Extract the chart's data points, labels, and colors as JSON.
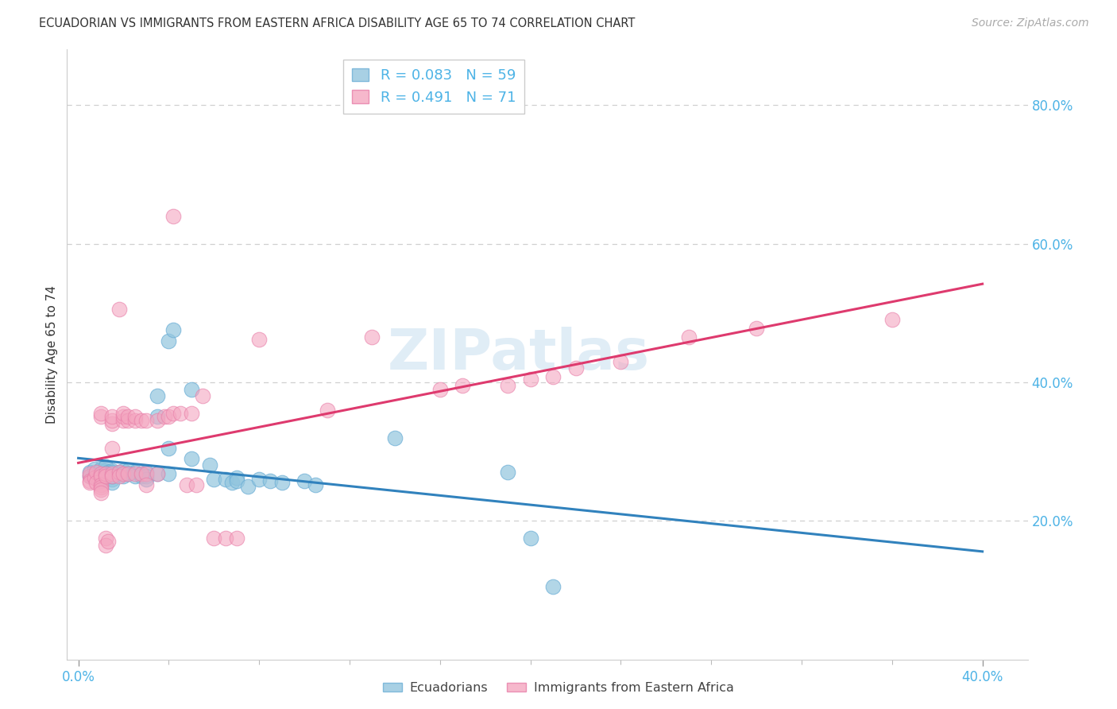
{
  "title": "ECUADORIAN VS IMMIGRANTS FROM EASTERN AFRICA DISABILITY AGE 65 TO 74 CORRELATION CHART",
  "source": "Source: ZipAtlas.com",
  "ylabel": "Disability Age 65 to 74",
  "xlim": [
    -0.005,
    0.42
  ],
  "ylim": [
    0.0,
    0.88
  ],
  "blue_color": "#92c5de",
  "pink_color": "#f4a6c0",
  "blue_edge_color": "#6baed6",
  "pink_edge_color": "#e87da8",
  "blue_line_color": "#3182bd",
  "pink_line_color": "#de3a6e",
  "axis_tick_color": "#4db3e6",
  "grid_color": "#d0d0d0",
  "blue_R": 0.083,
  "blue_N": 59,
  "pink_R": 0.491,
  "pink_N": 71,
  "ytick_right_vals": [
    0.2,
    0.4,
    0.6,
    0.8
  ],
  "ytick_right_labels": [
    "20.0%",
    "40.0%",
    "60.0%",
    "80.0%"
  ],
  "xtick_major_vals": [
    0.0,
    0.4
  ],
  "xtick_major_labels": [
    "0.0%",
    "40.0%"
  ],
  "xtick_minor_vals": [
    0.04,
    0.08,
    0.12,
    0.16,
    0.2,
    0.24,
    0.28,
    0.32,
    0.36
  ],
  "watermark_text": "ZIPatlas",
  "bottom_legend_labels": [
    "Ecuadorians",
    "Immigrants from Eastern Africa"
  ],
  "blue_scatter": [
    [
      0.005,
      0.265
    ],
    [
      0.005,
      0.27
    ],
    [
      0.007,
      0.275
    ],
    [
      0.008,
      0.268
    ],
    [
      0.01,
      0.27
    ],
    [
      0.01,
      0.272
    ],
    [
      0.01,
      0.275
    ],
    [
      0.01,
      0.265
    ],
    [
      0.01,
      0.26
    ],
    [
      0.01,
      0.258
    ],
    [
      0.012,
      0.268
    ],
    [
      0.012,
      0.272
    ],
    [
      0.012,
      0.278
    ],
    [
      0.013,
      0.27
    ],
    [
      0.013,
      0.265
    ],
    [
      0.015,
      0.272
    ],
    [
      0.015,
      0.27
    ],
    [
      0.015,
      0.26
    ],
    [
      0.015,
      0.255
    ],
    [
      0.015,
      0.265
    ],
    [
      0.018,
      0.27
    ],
    [
      0.018,
      0.268
    ],
    [
      0.02,
      0.272
    ],
    [
      0.02,
      0.268
    ],
    [
      0.02,
      0.265
    ],
    [
      0.022,
      0.273
    ],
    [
      0.022,
      0.268
    ],
    [
      0.025,
      0.27
    ],
    [
      0.025,
      0.265
    ],
    [
      0.028,
      0.268
    ],
    [
      0.028,
      0.265
    ],
    [
      0.03,
      0.27
    ],
    [
      0.03,
      0.265
    ],
    [
      0.03,
      0.26
    ],
    [
      0.035,
      0.268
    ],
    [
      0.035,
      0.35
    ],
    [
      0.035,
      0.38
    ],
    [
      0.04,
      0.268
    ],
    [
      0.04,
      0.305
    ],
    [
      0.04,
      0.46
    ],
    [
      0.042,
      0.475
    ],
    [
      0.05,
      0.39
    ],
    [
      0.05,
      0.29
    ],
    [
      0.058,
      0.28
    ],
    [
      0.06,
      0.26
    ],
    [
      0.065,
      0.26
    ],
    [
      0.068,
      0.255
    ],
    [
      0.07,
      0.262
    ],
    [
      0.07,
      0.258
    ],
    [
      0.075,
      0.25
    ],
    [
      0.08,
      0.26
    ],
    [
      0.085,
      0.258
    ],
    [
      0.09,
      0.255
    ],
    [
      0.1,
      0.258
    ],
    [
      0.105,
      0.252
    ],
    [
      0.14,
      0.32
    ],
    [
      0.19,
      0.27
    ],
    [
      0.2,
      0.175
    ],
    [
      0.21,
      0.105
    ]
  ],
  "pink_scatter": [
    [
      0.005,
      0.265
    ],
    [
      0.005,
      0.268
    ],
    [
      0.005,
      0.258
    ],
    [
      0.005,
      0.255
    ],
    [
      0.007,
      0.262
    ],
    [
      0.008,
      0.27
    ],
    [
      0.008,
      0.255
    ],
    [
      0.01,
      0.268
    ],
    [
      0.01,
      0.265
    ],
    [
      0.01,
      0.252
    ],
    [
      0.01,
      0.248
    ],
    [
      0.01,
      0.245
    ],
    [
      0.01,
      0.24
    ],
    [
      0.01,
      0.35
    ],
    [
      0.01,
      0.355
    ],
    [
      0.012,
      0.268
    ],
    [
      0.012,
      0.265
    ],
    [
      0.012,
      0.175
    ],
    [
      0.012,
      0.165
    ],
    [
      0.013,
      0.17
    ],
    [
      0.015,
      0.268
    ],
    [
      0.015,
      0.265
    ],
    [
      0.015,
      0.34
    ],
    [
      0.015,
      0.345
    ],
    [
      0.015,
      0.35
    ],
    [
      0.015,
      0.305
    ],
    [
      0.018,
      0.27
    ],
    [
      0.018,
      0.265
    ],
    [
      0.018,
      0.505
    ],
    [
      0.02,
      0.268
    ],
    [
      0.02,
      0.345
    ],
    [
      0.02,
      0.35
    ],
    [
      0.02,
      0.355
    ],
    [
      0.022,
      0.268
    ],
    [
      0.022,
      0.345
    ],
    [
      0.022,
      0.35
    ],
    [
      0.025,
      0.268
    ],
    [
      0.025,
      0.345
    ],
    [
      0.025,
      0.35
    ],
    [
      0.028,
      0.268
    ],
    [
      0.028,
      0.345
    ],
    [
      0.03,
      0.268
    ],
    [
      0.03,
      0.345
    ],
    [
      0.03,
      0.252
    ],
    [
      0.035,
      0.268
    ],
    [
      0.035,
      0.345
    ],
    [
      0.038,
      0.35
    ],
    [
      0.04,
      0.35
    ],
    [
      0.042,
      0.355
    ],
    [
      0.042,
      0.64
    ],
    [
      0.045,
      0.355
    ],
    [
      0.048,
      0.252
    ],
    [
      0.05,
      0.355
    ],
    [
      0.052,
      0.252
    ],
    [
      0.055,
      0.38
    ],
    [
      0.06,
      0.175
    ],
    [
      0.065,
      0.175
    ],
    [
      0.07,
      0.175
    ],
    [
      0.08,
      0.462
    ],
    [
      0.11,
      0.36
    ],
    [
      0.13,
      0.465
    ],
    [
      0.16,
      0.39
    ],
    [
      0.17,
      0.395
    ],
    [
      0.19,
      0.395
    ],
    [
      0.2,
      0.405
    ],
    [
      0.21,
      0.408
    ],
    [
      0.22,
      0.42
    ],
    [
      0.24,
      0.43
    ],
    [
      0.27,
      0.465
    ],
    [
      0.3,
      0.478
    ],
    [
      0.36,
      0.49
    ]
  ]
}
